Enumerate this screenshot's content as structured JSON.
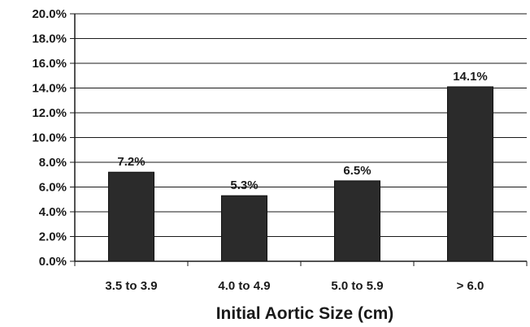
{
  "chart_data": {
    "type": "bar",
    "categories": [
      "3.5 to 3.9",
      "4.0 to 4.9",
      "5.0 to 5.9",
      "> 6.0"
    ],
    "values": [
      7.2,
      5.3,
      6.5,
      14.1
    ],
    "data_labels": [
      "7.2%",
      "5.3%",
      "6.5%",
      "14.1%"
    ],
    "yticks": [
      "0.0%",
      "2.0%",
      "4.0%",
      "6.0%",
      "8.0%",
      "10.0%",
      "12.0%",
      "14.0%",
      "16.0%",
      "18.0%",
      "20.0%"
    ],
    "ylim": [
      0,
      20
    ],
    "xlabel": "Initial Aortic Size (cm)",
    "ylabel": "",
    "title": "",
    "grid": true,
    "legend": "none",
    "colors": {
      "bar": "#2b2b2b",
      "grid": "#1a1a1a",
      "text": "#1a1a1a"
    }
  }
}
